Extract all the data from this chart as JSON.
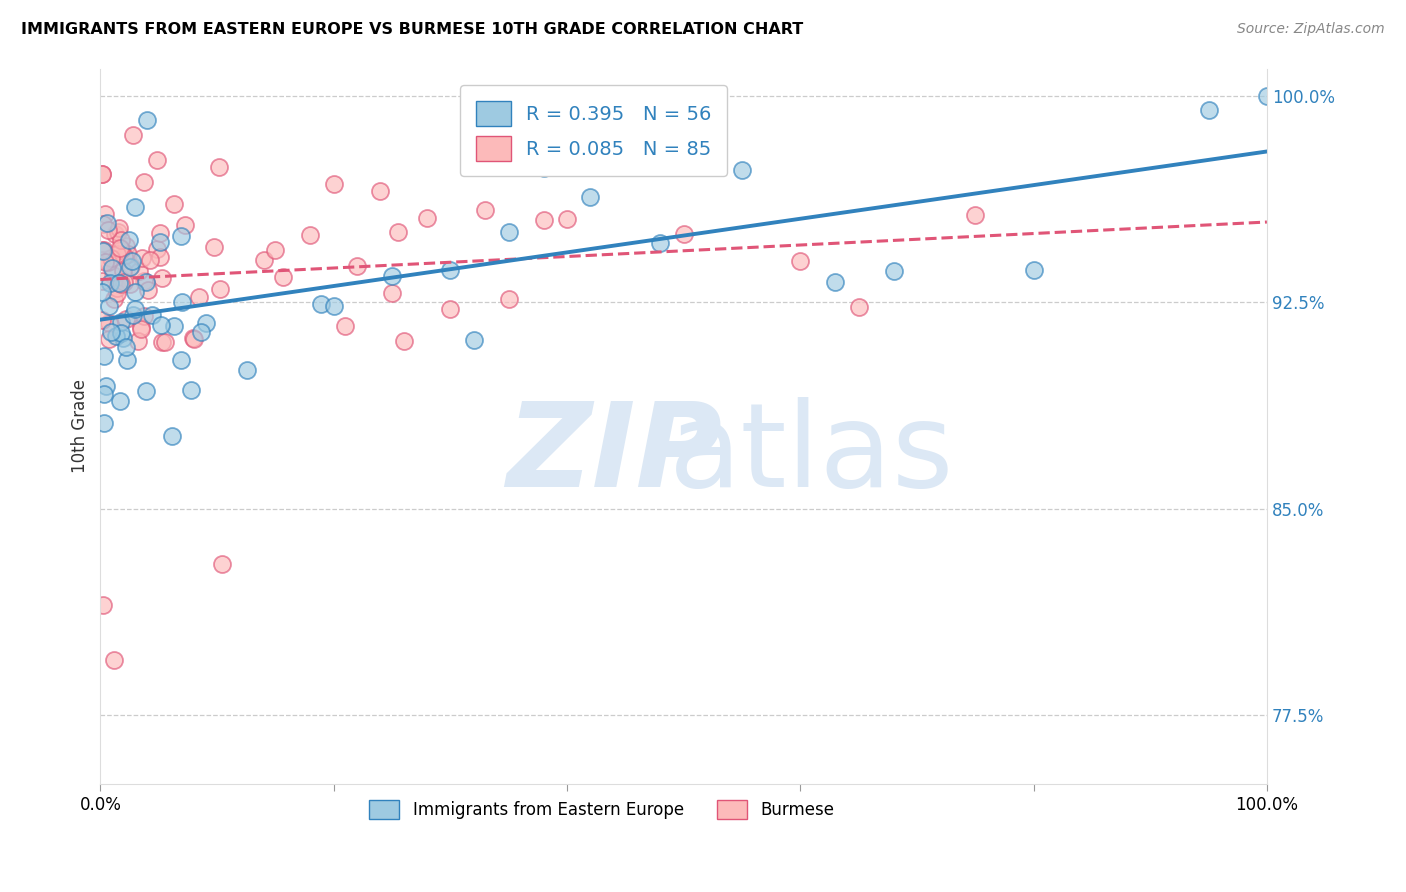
{
  "title": "IMMIGRANTS FROM EASTERN EUROPE VS BURMESE 10TH GRADE CORRELATION CHART",
  "source": "Source: ZipAtlas.com",
  "ylabel": "10th Grade",
  "legend_label_1": "Immigrants from Eastern Europe",
  "legend_label_2": "Burmese",
  "R1": 0.395,
  "N1": 56,
  "R2": 0.085,
  "N2": 85,
  "color_blue_fill": "#9ecae1",
  "color_blue_edge": "#3182bd",
  "color_pink_fill": "#fcbaba",
  "color_pink_edge": "#e05577",
  "color_blue_line": "#3182bd",
  "color_pink_line": "#e05577",
  "xmin": 0,
  "xmax": 100,
  "ymin": 75,
  "ymax": 101,
  "yticks": [
    77.5,
    85.0,
    92.5,
    100.0
  ],
  "grid_color": "#cccccc",
  "watermark_color": "#dce8f5"
}
